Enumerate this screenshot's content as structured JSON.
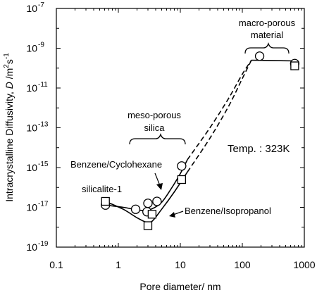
{
  "chart_data": {
    "type": "scatter",
    "x_scale": "log",
    "y_scale": "log",
    "xlim": [
      0.1,
      1000
    ],
    "ylim": [
      1e-19,
      1e-07
    ],
    "x_ticks": [
      {
        "value": 0.1,
        "label": "0.1"
      },
      {
        "value": 1,
        "label": "1"
      },
      {
        "value": 10,
        "label": "10"
      },
      {
        "value": 100,
        "label": "100"
      },
      {
        "value": 1000,
        "label": "1000"
      }
    ],
    "y_ticks": [
      {
        "value": 1e-19,
        "base": "10",
        "exp": "-19"
      },
      {
        "value": 1e-17,
        "base": "10",
        "exp": "-17"
      },
      {
        "value": 1e-15,
        "base": "10",
        "exp": "-15"
      },
      {
        "value": 1e-13,
        "base": "10",
        "exp": "-13"
      },
      {
        "value": 1e-11,
        "base": "10",
        "exp": "-11"
      },
      {
        "value": 1e-09,
        "base": "10",
        "exp": "-9"
      },
      {
        "value": 1e-07,
        "base": "10",
        "exp": "-7"
      }
    ],
    "xlabel": "Pore diameter/ nm",
    "ylabel": {
      "prefix": "Intracrystalline Diffusivity, ",
      "symbol": "D",
      "unit_pre": " /m",
      "unit_sup1": "2",
      "unit_mid": "s",
      "unit_sup2": "-1"
    },
    "series": [
      {
        "name": "Benzene/Cyclohexane",
        "marker": "circle",
        "points": [
          {
            "x": 0.62,
            "y": 1.3e-17
          },
          {
            "x": 1.9,
            "y": 8e-18
          },
          {
            "x": 2.9,
            "y": 6e-18
          },
          {
            "x": 3.0,
            "y": 1.6e-17
          },
          {
            "x": 4.2,
            "y": 2e-17
          },
          {
            "x": 10.5,
            "y": 1.2e-15
          },
          {
            "x": 190,
            "y": 4e-10
          },
          {
            "x": 700,
            "y": 1.7e-10
          }
        ],
        "curve": [
          [
            0.62,
            1.3e-17
          ],
          [
            1.2,
            1e-17
          ],
          [
            1.8,
            8e-18
          ],
          [
            2.5,
            7e-18
          ],
          [
            3.5,
            8.5e-18
          ],
          [
            5,
            1.8e-17
          ],
          [
            7,
            8e-17
          ],
          [
            10,
            5e-16
          ],
          [
            13,
            2.5e-15
          ]
        ],
        "dashed": [
          [
            13,
            2.5e-15
          ],
          [
            30,
            1e-13
          ],
          [
            60,
            3e-12
          ],
          [
            100,
            5e-11
          ],
          [
            140,
            2.5e-10
          ]
        ],
        "plateau": [
          [
            140,
            2.5e-10
          ],
          [
            700,
            2.3e-10
          ]
        ]
      },
      {
        "name": "Benzene/Isopropanol",
        "marker": "square",
        "points": [
          {
            "x": 0.62,
            "y": 2e-17
          },
          {
            "x": 3.0,
            "y": 1.2e-18
          },
          {
            "x": 3.5,
            "y": 4.5e-18
          },
          {
            "x": 10.5,
            "y": 2.5e-16
          },
          {
            "x": 700,
            "y": 1.3e-10
          }
        ],
        "curve": [
          [
            0.62,
            2e-17
          ],
          [
            1.2,
            8e-18
          ],
          [
            2,
            3e-18
          ],
          [
            2.8,
            1.8e-18
          ],
          [
            3.5,
            2e-18
          ],
          [
            5,
            8e-18
          ],
          [
            8,
            6e-17
          ],
          [
            13,
            6e-16
          ]
        ],
        "dashed": [
          [
            13,
            6e-16
          ],
          [
            30,
            3e-14
          ],
          [
            60,
            1.2e-12
          ],
          [
            100,
            3e-11
          ],
          [
            140,
            2.5e-10
          ]
        ],
        "plateau": []
      }
    ],
    "annotations": {
      "silicalite": "silicalite-1",
      "meso": [
        "meso-porous",
        "silica"
      ],
      "macro": [
        "macro-porous",
        "material"
      ],
      "temp": "Temp. : 323K",
      "cyclohexane": "Benzene/Cyclohexane",
      "isopropanol": "Benzene/Isopropanol"
    },
    "grid": false,
    "legend": "none"
  }
}
